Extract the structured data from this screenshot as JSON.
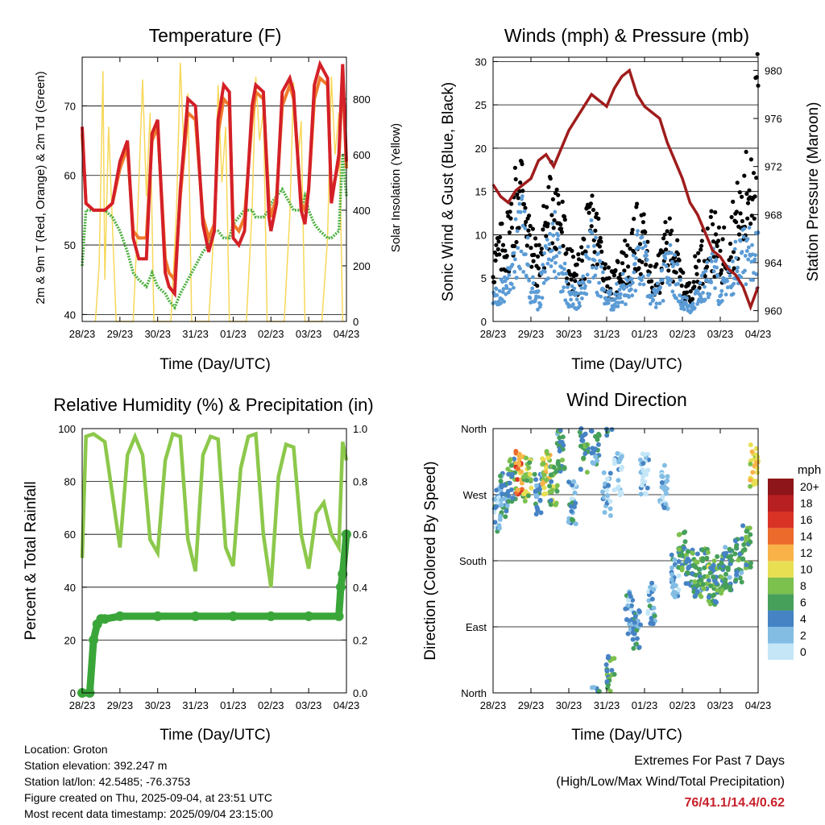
{
  "info": {
    "location": "Location: Groton",
    "elevation": "Station elevation: 392.247 m",
    "latlon": "Station lat/lon: 42.5485; -76.3753",
    "created": "Figure created on Thu, 2025-09-04, at 23:51 UTC",
    "latest": "Most recent data timestamp: 2025/09/04 23:15:00"
  },
  "extremes": {
    "title": "Extremes For Past 7 Days",
    "subtitle": "(High/Low/Max Wind/Total Precipitation)",
    "values": "76/41.1/14.4/0.62"
  },
  "colors": {
    "temp2m": "#d42027",
    "temp9m": "#f07a2b",
    "dewpoint": "#4caf3f",
    "solar": "#f7d85a",
    "wind": "#5b9bd5",
    "gust": "#000000",
    "pressure": "#a01c1c",
    "rh": "#8cc84b",
    "rain": "#3aa63a"
  },
  "chart_data": [
    {
      "type": "line",
      "title": "Temperature (F)",
      "xlabel": "Time (Day/UTC)",
      "ylabel": "2m & 9m T (Red, Orange) & 2m Td (Green)",
      "ylabel_right": "Solar Insolation (Yellow)",
      "x_ticks": [
        "28/23",
        "29/23",
        "30/23",
        "31/23",
        "01/23",
        "02/23",
        "03/23",
        "04/23"
      ],
      "y_ticks": [
        40,
        50,
        60,
        70
      ],
      "y_ticks_right": [
        0,
        200,
        400,
        600,
        800
      ],
      "ylim": [
        39,
        77
      ],
      "ylim_right": [
        0,
        950
      ],
      "series": [
        {
          "name": "2m T",
          "x": [
            0,
            0.1,
            0.3,
            0.6,
            0.8,
            1.0,
            1.2,
            1.35,
            1.5,
            1.7,
            1.85,
            2.0,
            2.2,
            2.3,
            2.45,
            2.6,
            2.8,
            3.0,
            3.2,
            3.35,
            3.5,
            3.6,
            3.75,
            3.9,
            4.0,
            4.15,
            4.3,
            4.5,
            4.6,
            4.8,
            4.95,
            5.0,
            5.15,
            5.3,
            5.5,
            5.6,
            5.8,
            5.9,
            6.0,
            6.15,
            6.3,
            6.5,
            6.6,
            6.8,
            6.9,
            7.0
          ],
          "values": [
            67,
            56,
            55,
            55,
            56,
            62,
            65,
            51,
            48,
            48,
            66,
            68,
            46,
            44,
            43,
            58,
            71,
            70,
            53,
            49,
            52,
            68,
            73,
            72,
            51,
            50,
            52,
            70,
            73,
            72,
            54,
            52,
            56,
            72,
            74,
            72,
            55,
            53,
            58,
            73,
            76,
            74,
            56,
            63,
            76,
            62
          ]
        },
        {
          "name": "9m T",
          "x": [
            0,
            0.1,
            0.3,
            0.6,
            0.8,
            1.0,
            1.2,
            1.35,
            1.5,
            1.7,
            1.85,
            2.0,
            2.2,
            2.3,
            2.45,
            2.6,
            2.8,
            3.0,
            3.2,
            3.35,
            3.5,
            3.6,
            3.75,
            3.9,
            4.0,
            4.15,
            4.3,
            4.5,
            4.6,
            4.8,
            4.95,
            5.0,
            5.15,
            5.3,
            5.5,
            5.6,
            5.8,
            5.9,
            6.0,
            6.15,
            6.3,
            6.5,
            6.6,
            6.8,
            6.9,
            7.0
          ],
          "values": [
            66,
            56,
            55,
            55,
            56,
            61,
            64,
            52,
            51,
            51,
            65,
            67,
            48,
            46,
            45,
            57,
            69,
            68,
            54,
            51,
            53,
            66,
            71,
            70,
            53,
            52,
            54,
            68,
            72,
            71,
            56,
            54,
            57,
            70,
            73,
            71,
            56,
            55,
            58,
            71,
            74,
            73,
            57,
            62,
            75,
            61
          ]
        },
        {
          "name": "2m Td",
          "x": [
            0,
            0.1,
            0.3,
            0.6,
            0.8,
            1.0,
            1.2,
            1.35,
            1.5,
            1.7,
            1.85,
            2.0,
            2.2,
            2.3,
            2.45,
            2.6,
            2.8,
            3.0,
            3.2,
            3.35,
            3.5,
            3.6,
            3.75,
            3.9,
            4.0,
            4.15,
            4.3,
            4.5,
            4.6,
            4.8,
            4.95,
            5.0,
            5.15,
            5.3,
            5.5,
            5.6,
            5.8,
            5.9,
            6.0,
            6.15,
            6.3,
            6.5,
            6.6,
            6.8,
            6.9,
            7.0
          ],
          "values": [
            47,
            55,
            55,
            55,
            54,
            52,
            49,
            46,
            45,
            44,
            46,
            44,
            43,
            42,
            41,
            43,
            45,
            47,
            49,
            50,
            52,
            52,
            51,
            51,
            53,
            54,
            55,
            55,
            54,
            54,
            55,
            56,
            57,
            58,
            56,
            55,
            55,
            57,
            55,
            53,
            52,
            51,
            51,
            52,
            63,
            57
          ]
        },
        {
          "name": "Solar Insolation",
          "axis": "right",
          "x": [
            0.35,
            0.45,
            0.55,
            0.6,
            0.7,
            0.8,
            0.9,
            1.35,
            1.45,
            1.6,
            1.7,
            1.8,
            1.9,
            2.35,
            2.5,
            2.6,
            2.7,
            2.8,
            2.9,
            3.35,
            3.5,
            3.6,
            3.7,
            3.8,
            3.9,
            4.35,
            4.5,
            4.6,
            4.7,
            4.8,
            4.9,
            5.35,
            5.5,
            5.6,
            5.7,
            5.8,
            5.9,
            6.35,
            6.5,
            6.6,
            6.7,
            6.8,
            6.9
          ],
          "values": [
            0,
            200,
            900,
            150,
            700,
            350,
            0,
            0,
            300,
            870,
            450,
            750,
            0,
            0,
            400,
            930,
            600,
            820,
            0,
            0,
            350,
            850,
            500,
            700,
            0,
            0,
            400,
            880,
            650,
            760,
            0,
            0,
            380,
            860,
            550,
            720,
            0,
            0,
            300,
            880,
            600,
            750,
            0
          ]
        }
      ]
    },
    {
      "type": "scatter",
      "title": "Winds (mph) & Pressure (mb)",
      "xlabel": "Time (Day/UTC)",
      "ylabel": "Sonic Wind & Gust (Blue, Black)",
      "ylabel_right": "Station Pressure (Maroon)",
      "x_ticks": [
        "28/23",
        "29/23",
        "30/23",
        "31/23",
        "01/23",
        "02/23",
        "03/23",
        "04/23"
      ],
      "y_ticks": [
        0,
        5,
        10,
        15,
        20,
        25,
        30
      ],
      "y_ticks_right": [
        960,
        964,
        968,
        972,
        976,
        980
      ],
      "ylim": [
        0,
        30.5
      ],
      "ylim_right": [
        959.1,
        981.1
      ],
      "series": [
        {
          "name": "Sonic Wind",
          "x": [
            0,
            0.2,
            0.4,
            0.6,
            0.8,
            1.0,
            1.2,
            1.4,
            1.6,
            1.8,
            2.0,
            2.2,
            2.4,
            2.6,
            2.8,
            3.0,
            3.2,
            3.4,
            3.6,
            3.8,
            4.0,
            4.2,
            4.4,
            4.6,
            4.8,
            5.0,
            5.2,
            5.4,
            5.6,
            5.8,
            6.0,
            6.2,
            6.4,
            6.6,
            6.8,
            7.0
          ],
          "values": [
            3,
            4,
            6,
            10,
            13,
            5,
            3,
            8,
            12,
            8,
            4,
            3,
            6,
            10,
            7,
            3,
            3,
            5,
            4,
            9,
            8,
            3,
            4,
            8,
            7,
            3,
            2,
            4,
            5,
            8,
            4,
            5,
            8,
            9,
            12,
            9
          ]
        },
        {
          "name": "Gust",
          "x": [
            0,
            0.2,
            0.4,
            0.6,
            0.8,
            1.0,
            1.2,
            1.4,
            1.6,
            1.8,
            2.0,
            2.2,
            2.4,
            2.6,
            2.8,
            3.0,
            3.2,
            3.4,
            3.6,
            3.8,
            4.0,
            4.2,
            4.4,
            4.6,
            4.8,
            5.0,
            5.2,
            5.4,
            5.6,
            5.8,
            6.0,
            6.2,
            6.4,
            6.6,
            6.8,
            7.0
          ],
          "values": [
            8,
            10,
            12,
            17,
            20,
            10,
            8,
            14,
            18,
            14,
            8,
            6,
            10,
            14,
            11,
            6,
            5,
            9,
            8,
            12,
            11,
            5,
            7,
            11,
            10,
            5,
            4,
            8,
            10,
            12,
            9,
            11,
            14,
            15,
            21,
            28
          ]
        },
        {
          "name": "Station Pressure",
          "axis": "right",
          "x": [
            0,
            0.2,
            0.4,
            0.6,
            0.8,
            1.0,
            1.2,
            1.4,
            1.6,
            1.8,
            2.0,
            2.2,
            2.4,
            2.6,
            2.8,
            3.0,
            3.2,
            3.4,
            3.6,
            3.8,
            4.0,
            4.2,
            4.4,
            4.6,
            4.8,
            5.0,
            5.2,
            5.4,
            5.6,
            5.8,
            6.0,
            6.2,
            6.4,
            6.6,
            6.8,
            7.0
          ],
          "values": [
            970.5,
            969.5,
            969.0,
            970.0,
            970.5,
            971.0,
            972.5,
            973.0,
            972.0,
            973.5,
            975.0,
            976.0,
            977.0,
            978.0,
            977.5,
            977.0,
            978.5,
            979.5,
            980.0,
            978.0,
            977.0,
            976.5,
            976.0,
            974.0,
            972.5,
            971.0,
            969.0,
            968.0,
            966.5,
            965.0,
            964.5,
            963.5,
            963.0,
            962.0,
            960.3,
            962.0
          ]
        }
      ]
    },
    {
      "type": "line",
      "title": "Relative Humidity (%) & Precipitation (in)",
      "xlabel": "Time (Day/UTC)",
      "ylabel": "Percent & Total Rainfall",
      "x_ticks": [
        "28/23",
        "29/23",
        "30/23",
        "31/23",
        "01/23",
        "02/23",
        "03/23",
        "04/23"
      ],
      "y_ticks": [
        0,
        20,
        40,
        60,
        80,
        100
      ],
      "y_ticks_right": [
        0.0,
        0.2,
        0.4,
        0.6,
        0.8,
        1.0
      ],
      "ylim": [
        0,
        100
      ],
      "ylim_right": [
        0,
        1.0
      ],
      "series": [
        {
          "name": "Relative Humidity",
          "x": [
            0,
            0.1,
            0.3,
            0.6,
            0.8,
            1.0,
            1.2,
            1.4,
            1.6,
            1.8,
            2.0,
            2.2,
            2.4,
            2.6,
            2.8,
            3.0,
            3.2,
            3.4,
            3.6,
            3.8,
            4.0,
            4.2,
            4.4,
            4.6,
            4.8,
            5.0,
            5.2,
            5.4,
            5.6,
            5.8,
            6.0,
            6.2,
            6.4,
            6.6,
            6.8,
            6.9,
            7.0
          ],
          "values": [
            51,
            97,
            98,
            95,
            75,
            55,
            90,
            97,
            90,
            58,
            53,
            88,
            98,
            97,
            58,
            46,
            90,
            97,
            96,
            55,
            48,
            85,
            97,
            98,
            60,
            40,
            82,
            94,
            93,
            60,
            47,
            68,
            72,
            60,
            55,
            95,
            88
          ]
        },
        {
          "name": "Total Rainfall",
          "axis": "right",
          "x": [
            0,
            0.2,
            0.3,
            0.4,
            0.5,
            0.6,
            1.0,
            2.0,
            3.0,
            4.0,
            5.0,
            6.0,
            6.8,
            6.85,
            6.9,
            7.0
          ],
          "values": [
            0.0,
            0.0,
            0.2,
            0.26,
            0.28,
            0.28,
            0.29,
            0.29,
            0.29,
            0.29,
            0.29,
            0.29,
            0.29,
            0.4,
            0.45,
            0.6
          ]
        }
      ]
    },
    {
      "type": "scatter",
      "title": "Wind Direction",
      "xlabel": "Time (Day/UTC)",
      "ylabel": "Direction (Colored By Speed)",
      "x_ticks": [
        "28/23",
        "29/23",
        "30/23",
        "31/23",
        "01/23",
        "02/23",
        "03/23",
        "04/23"
      ],
      "y_ticks": [
        "North",
        "East",
        "South",
        "West",
        "North"
      ],
      "ylim": [
        0,
        360
      ],
      "colorbar": {
        "unit": "mph",
        "labels": [
          "0",
          "2",
          "4",
          "6",
          "8",
          "10",
          "12",
          "14",
          "16",
          "18",
          "20+"
        ],
        "colors": [
          "#c4e6f7",
          "#83bde4",
          "#4583c4",
          "#46a05a",
          "#7cc04e",
          "#e8df53",
          "#f9b248",
          "#ec6a2b",
          "#d93326",
          "#b81f22",
          "#8e1519"
        ]
      },
      "clusters": [
        {
          "x": 0.1,
          "dir": 250,
          "speed": 3
        },
        {
          "x": 0.3,
          "dir": 270,
          "speed": 4
        },
        {
          "x": 0.5,
          "dir": 290,
          "speed": 6
        },
        {
          "x": 0.7,
          "dir": 300,
          "speed": 13
        },
        {
          "x": 0.9,
          "dir": 290,
          "speed": 8
        },
        {
          "x": 1.2,
          "dir": 270,
          "speed": 4
        },
        {
          "x": 1.4,
          "dir": 300,
          "speed": 10
        },
        {
          "x": 1.6,
          "dir": 280,
          "speed": 7
        },
        {
          "x": 1.8,
          "dir": 330,
          "speed": 5
        },
        {
          "x": 2.1,
          "dir": 260,
          "speed": 3
        },
        {
          "x": 2.4,
          "dir": 330,
          "speed": 6
        },
        {
          "x": 2.7,
          "dir": 340,
          "speed": 4
        },
        {
          "x": 3.0,
          "dir": 270,
          "speed": 2
        },
        {
          "x": 3.1,
          "dir": 20,
          "speed": 6
        },
        {
          "x": 3.3,
          "dir": 300,
          "speed": 1
        },
        {
          "x": 3.6,
          "dir": 110,
          "speed": 3
        },
        {
          "x": 3.8,
          "dir": 90,
          "speed": 4
        },
        {
          "x": 4.0,
          "dir": 300,
          "speed": 1
        },
        {
          "x": 4.2,
          "dir": 120,
          "speed": 3
        },
        {
          "x": 4.5,
          "dir": 280,
          "speed": 2
        },
        {
          "x": 4.8,
          "dir": 160,
          "speed": 3
        },
        {
          "x": 5.0,
          "dir": 190,
          "speed": 6
        },
        {
          "x": 5.2,
          "dir": 170,
          "speed": 5
        },
        {
          "x": 5.4,
          "dir": 160,
          "speed": 5
        },
        {
          "x": 5.6,
          "dir": 170,
          "speed": 7
        },
        {
          "x": 5.8,
          "dir": 150,
          "speed": 6
        },
        {
          "x": 6.0,
          "dir": 160,
          "speed": 6
        },
        {
          "x": 6.2,
          "dir": 170,
          "speed": 4
        },
        {
          "x": 6.5,
          "dir": 180,
          "speed": 5
        },
        {
          "x": 6.7,
          "dir": 200,
          "speed": 6
        },
        {
          "x": 6.9,
          "dir": 310,
          "speed": 10
        }
      ]
    }
  ]
}
